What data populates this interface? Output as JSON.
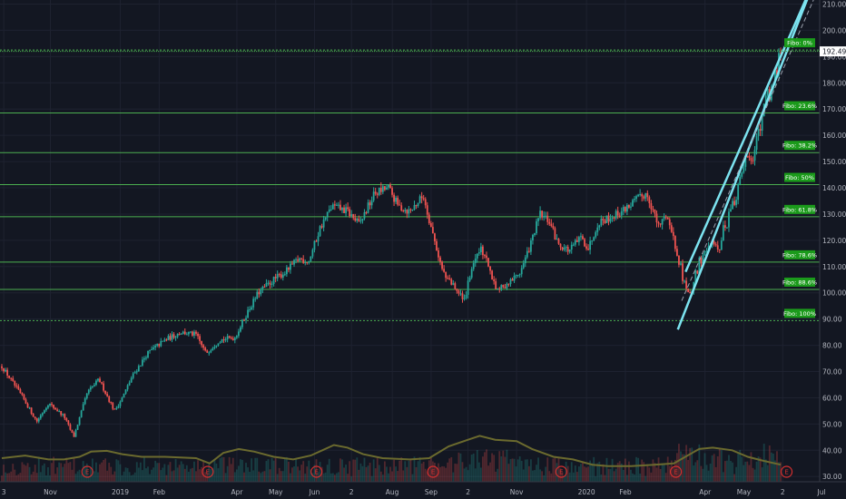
{
  "chart_data": {
    "type": "candlestick",
    "title": "",
    "ylim": [
      29,
      211
    ],
    "y_ticks": [
      30,
      40,
      50,
      60,
      70,
      80,
      90,
      100,
      110,
      120,
      130,
      140,
      150,
      160,
      170,
      180,
      190,
      200,
      210
    ],
    "y_tick_labels": [
      "30.00",
      "40.00",
      "50.00",
      "60.00",
      "70.00",
      "80.00",
      "90.00",
      "100.00",
      "110.00",
      "120.00",
      "130.00",
      "140.00",
      "150.00",
      "160.00",
      "170.00",
      "180.00",
      "190.00",
      "200.00",
      "210.00"
    ],
    "x_range_months": [
      0,
      22
    ],
    "x_ticks": [
      {
        "m": 0.05,
        "label": "3"
      },
      {
        "m": 1.25,
        "label": "Nov"
      },
      {
        "m": 3.05,
        "label": "2019"
      },
      {
        "m": 4.05,
        "label": "Feb"
      },
      {
        "m": 6.05,
        "label": "Apr"
      },
      {
        "m": 7.05,
        "label": "May"
      },
      {
        "m": 8.05,
        "label": "Jun"
      },
      {
        "m": 9.0,
        "label": "2"
      },
      {
        "m": 10.05,
        "label": "Aug"
      },
      {
        "m": 11.05,
        "label": "Sep"
      },
      {
        "m": 12.0,
        "label": "2"
      },
      {
        "m": 13.25,
        "label": "Nov"
      },
      {
        "m": 15.05,
        "label": "2020"
      },
      {
        "m": 16.05,
        "label": "Feb"
      },
      {
        "m": 18.1,
        "label": "Apr"
      },
      {
        "m": 19.1,
        "label": "May"
      },
      {
        "m": 20.1,
        "label": "2"
      },
      {
        "m": 21.1,
        "label": "Jul"
      }
    ],
    "price_path": [
      [
        0.0,
        72
      ],
      [
        0.5,
        61
      ],
      [
        0.9,
        51
      ],
      [
        1.2,
        58
      ],
      [
        1.6,
        53
      ],
      [
        1.85,
        45
      ],
      [
        2.2,
        62
      ],
      [
        2.5,
        67
      ],
      [
        2.9,
        55
      ],
      [
        3.1,
        60
      ],
      [
        3.35,
        68
      ],
      [
        3.75,
        77
      ],
      [
        4.2,
        82
      ],
      [
        4.6,
        85
      ],
      [
        5.0,
        84
      ],
      [
        5.25,
        77
      ],
      [
        5.6,
        82
      ],
      [
        6.0,
        83
      ],
      [
        6.3,
        92
      ],
      [
        6.6,
        100
      ],
      [
        7.0,
        105
      ],
      [
        7.3,
        108
      ],
      [
        7.65,
        113
      ],
      [
        7.9,
        112
      ],
      [
        8.2,
        125
      ],
      [
        8.5,
        133
      ],
      [
        8.9,
        131
      ],
      [
        9.2,
        126
      ],
      [
        9.6,
        138
      ],
      [
        9.95,
        140
      ],
      [
        10.2,
        133
      ],
      [
        10.5,
        131
      ],
      [
        10.85,
        137
      ],
      [
        11.1,
        122
      ],
      [
        11.35,
        108
      ],
      [
        11.65,
        102
      ],
      [
        11.9,
        97
      ],
      [
        12.1,
        110
      ],
      [
        12.35,
        117
      ],
      [
        12.55,
        109
      ],
      [
        12.75,
        101
      ],
      [
        13.0,
        103
      ],
      [
        13.35,
        108
      ],
      [
        13.6,
        118
      ],
      [
        13.85,
        130
      ],
      [
        14.1,
        127
      ],
      [
        14.3,
        119
      ],
      [
        14.6,
        116
      ],
      [
        14.9,
        121
      ],
      [
        15.1,
        117
      ],
      [
        15.35,
        127
      ],
      [
        15.7,
        129
      ],
      [
        15.95,
        131
      ],
      [
        16.3,
        135
      ],
      [
        16.6,
        138
      ],
      [
        16.75,
        132
      ],
      [
        16.9,
        125
      ],
      [
        17.1,
        130
      ],
      [
        17.35,
        118
      ],
      [
        17.55,
        105
      ],
      [
        17.7,
        99
      ],
      [
        17.95,
        111
      ],
      [
        18.2,
        118
      ],
      [
        18.45,
        116
      ],
      [
        18.6,
        125
      ],
      [
        18.9,
        137
      ],
      [
        19.15,
        152
      ],
      [
        19.35,
        150
      ],
      [
        19.6,
        170
      ],
      [
        19.9,
        183
      ],
      [
        20.05,
        191
      ]
    ],
    "volume_path": [
      [
        0.0,
        37
      ],
      [
        0.6,
        38
      ],
      [
        1.2,
        36.5
      ],
      [
        1.6,
        36.5
      ],
      [
        2.0,
        37.5
      ],
      [
        2.3,
        39.5
      ],
      [
        2.7,
        39.8
      ],
      [
        3.1,
        38.5
      ],
      [
        3.6,
        37.5
      ],
      [
        4.2,
        37.5
      ],
      [
        5.0,
        37
      ],
      [
        5.35,
        35
      ],
      [
        5.7,
        39
      ],
      [
        6.1,
        40.5
      ],
      [
        6.5,
        39.5
      ],
      [
        7.0,
        37.5
      ],
      [
        7.5,
        36.5
      ],
      [
        7.95,
        38
      ],
      [
        8.25,
        40
      ],
      [
        8.55,
        42
      ],
      [
        8.9,
        41
      ],
      [
        9.3,
        38.5
      ],
      [
        9.8,
        37
      ],
      [
        10.5,
        36.5
      ],
      [
        11.0,
        37
      ],
      [
        11.5,
        41.5
      ],
      [
        12.0,
        44
      ],
      [
        12.3,
        45.5
      ],
      [
        12.7,
        44
      ],
      [
        13.25,
        43.5
      ],
      [
        13.65,
        40.5
      ],
      [
        14.2,
        37.5
      ],
      [
        14.7,
        36.5
      ],
      [
        15.2,
        34.5
      ],
      [
        15.6,
        34
      ],
      [
        16.2,
        34
      ],
      [
        16.8,
        34.5
      ],
      [
        17.3,
        35
      ],
      [
        17.65,
        38
      ],
      [
        17.95,
        40.5
      ],
      [
        18.3,
        41
      ],
      [
        18.8,
        40
      ],
      [
        19.2,
        37.5
      ],
      [
        19.6,
        36
      ],
      [
        20.05,
        34.5
      ]
    ],
    "fib_levels": [
      {
        "label": "Fibo:   0%",
        "value": 192.49
      },
      {
        "label": "Fibo: 23.6%",
        "value": 168.5
      },
      {
        "label": "Fibo: 38.2%",
        "value": 153.4
      },
      {
        "label": "Fibo:   50%",
        "value": 141.2
      },
      {
        "label": "Fibo: 61.8%",
        "value": 129.0
      },
      {
        "label": "Fibo: 78.6%",
        "value": 111.7
      },
      {
        "label": "Fibo: 88.6%",
        "value": 101.3
      },
      {
        "label": "Fibo: 100%",
        "value": 89.4
      }
    ],
    "current_price": {
      "value": 192.49,
      "label": "192.49"
    },
    "earnings_markers": {
      "label": "E",
      "positions_m": [
        2.2,
        5.3,
        8.1,
        11.1,
        14.4,
        17.35,
        20.2
      ]
    },
    "channel": {
      "lower": [
        [
          17.4,
          86
        ],
        [
          21.0,
          222
        ]
      ],
      "upper": [
        [
          17.6,
          108
        ],
        [
          21.0,
          222
        ]
      ],
      "mid": [
        [
          17.5,
          97
        ],
        [
          21.2,
          222
        ]
      ]
    },
    "colors": {
      "background": "#131722",
      "grid": "#1e2230",
      "up": "#26a69a",
      "down": "#ef5350",
      "fib_line": "#4caf50",
      "fib_label_bg": "#1b9a1b",
      "current_line": "#4caf50",
      "channel": "#7ce3f0",
      "volume_ma": "#6b6a2e",
      "earnings": "#d32f2f",
      "axis_text": "#b2b5be"
    }
  }
}
